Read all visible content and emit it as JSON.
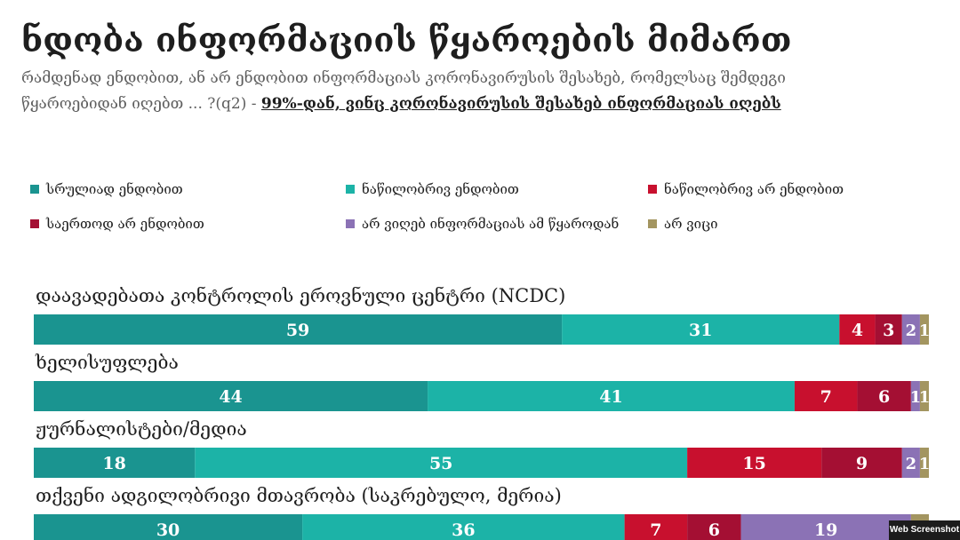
{
  "header": {
    "title": "ნდობა ინფორმაციის წყაროების მიმართ",
    "subtitle_main": "რამდენად ენდობით, ან არ ენდობით ინფორმაციას კორონავირუსის შესახებ, რომელსაც შემდეგი წყაროებიდან იღებთ ... ?(q2)",
    "subtitle_dash": " - ",
    "subtitle_emph": "99%-დან, ვინც კორონავირუსის შესახებ ინფორმაციას იღებს"
  },
  "badge": {
    "label": "Web Screenshot"
  },
  "chart_data": {
    "type": "bar",
    "orientation": "horizontal",
    "stacked": true,
    "xlim": [
      0,
      100
    ],
    "legend_position": "top",
    "categories": [
      "დაავადებათა კონტროლის ეროვნული ცენტრი (NCDC)",
      "ხელისუფლება",
      "ჟურნალისტები/მედია",
      "თქვენი ადგილობრივი მთავრობა (საკრებულო, მერია)"
    ],
    "series": [
      {
        "name": "სრულიად ენდობით",
        "color": "#1a9490",
        "values": [
          59,
          44,
          18,
          30
        ]
      },
      {
        "name": "ნაწილობრივ ენდობით",
        "color": "#1cb3a7",
        "values": [
          31,
          41,
          55,
          36
        ]
      },
      {
        "name": "ნაწილობრივ არ ენდობით",
        "color": "#c8102e",
        "values": [
          4,
          7,
          15,
          7
        ]
      },
      {
        "name": "საერთოდ არ ენდობით",
        "color": "#a40f33",
        "values": [
          3,
          6,
          9,
          6
        ]
      },
      {
        "name": "არ ვიღებ ინფორმაციას ამ წყაროდან",
        "color": "#8b72b5",
        "values": [
          2,
          1,
          2,
          19
        ]
      },
      {
        "name": "არ ვიცი",
        "color": "#a39560",
        "values": [
          1,
          1,
          1,
          2
        ]
      }
    ]
  }
}
